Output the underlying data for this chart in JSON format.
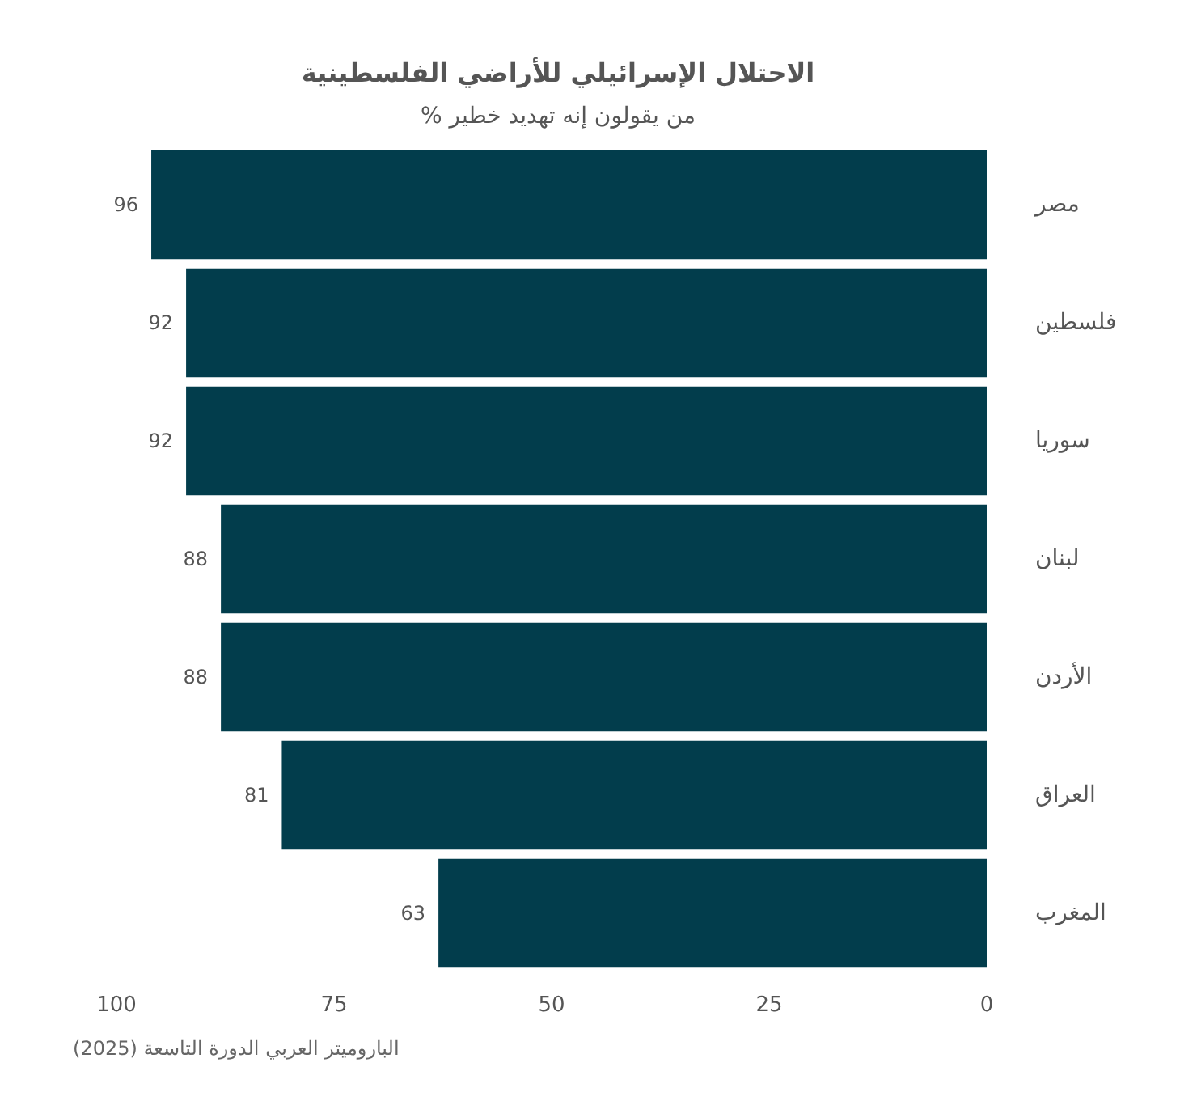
{
  "chart_data": {
    "type": "bar",
    "orientation": "horizontal",
    "title": "الاحتلال الإسرائيلي للأراضي الفلسطينية",
    "subtitle": "% من يقولون إنه تهديد خطير",
    "categories": [
      "مصر",
      "فلسطين",
      "سوريا",
      "لبنان",
      "الأردن",
      "العراق",
      "المغرب"
    ],
    "values": [
      96,
      92,
      92,
      88,
      88,
      81,
      63
    ],
    "color": "#023d4c",
    "xlim": [
      100,
      0
    ],
    "xticks": [
      100,
      75,
      50,
      25,
      0
    ],
    "grid": false,
    "data_labels": true,
    "annotations": [
      "الباروميتر العربي الدورة التاسعة (2025)"
    ]
  }
}
